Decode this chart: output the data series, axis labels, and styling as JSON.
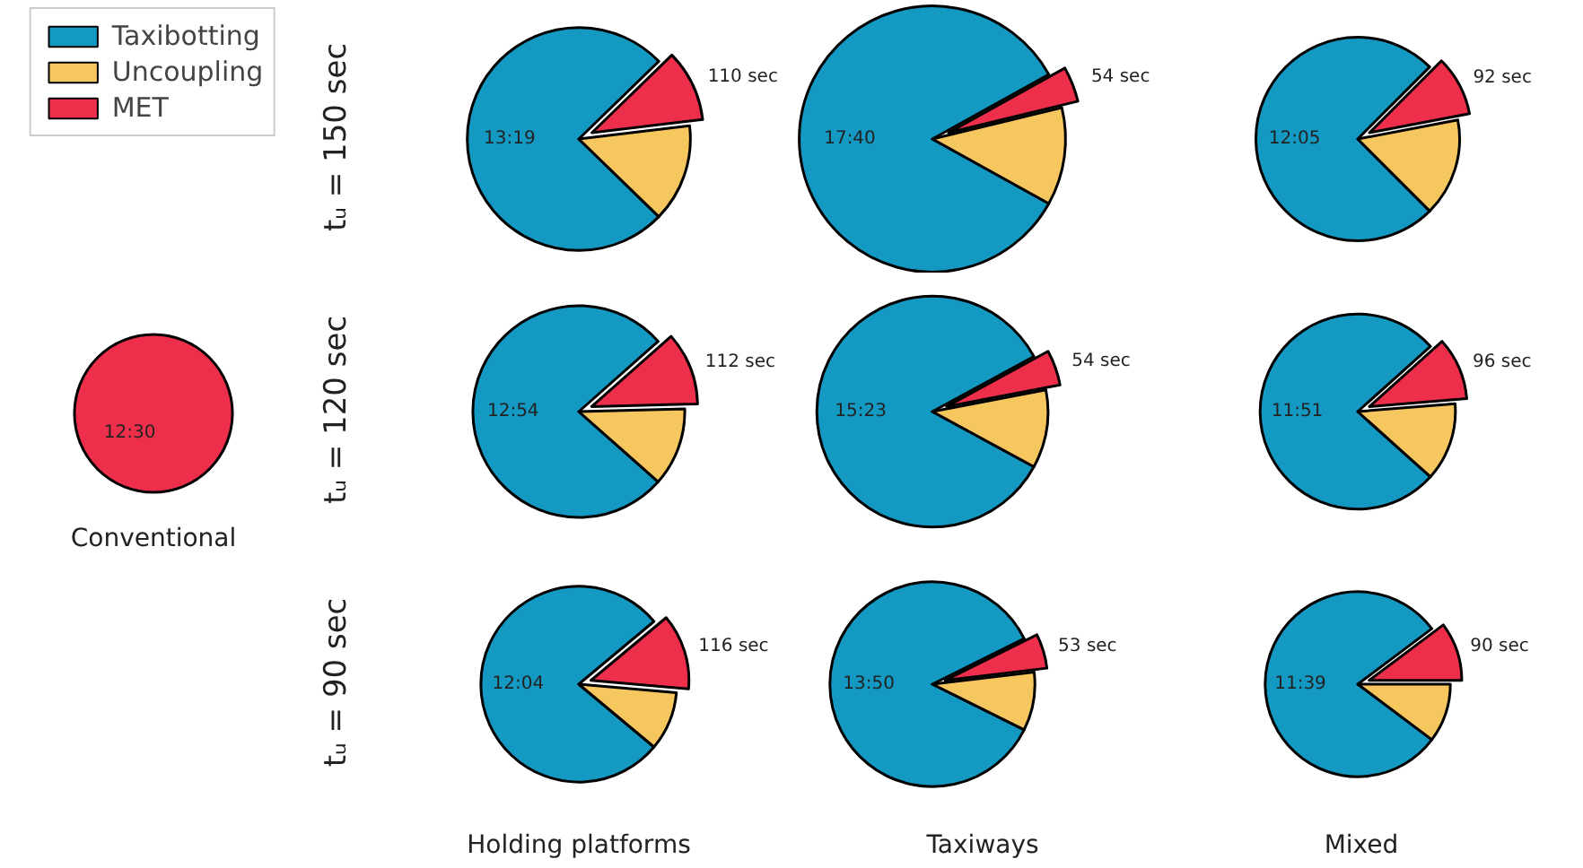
{
  "chart_data": [
    {
      "type": "pie",
      "xlabel": "Conventional",
      "categories": [
        "Taxibotting",
        "Uncoupling",
        "MET"
      ],
      "values": [
        0,
        0,
        750
      ],
      "colors": [
        "#1399c2",
        "#f6c65f",
        "#ee2f4c"
      ],
      "value_labels": [
        null,
        null,
        "12:30"
      ],
      "legend": "top"
    },
    {
      "type": "pie",
      "ylabel": "tᵤ = 150 sec",
      "values": [
        799,
        150,
        110
      ],
      "colors": [
        "#1399c2",
        "#f6c65f",
        "#ee2f4c"
      ],
      "value_labels": [
        "13:19",
        null,
        "110 sec"
      ]
    },
    {
      "type": "pie",
      "values": [
        1060,
        150,
        54
      ],
      "colors": [
        "#1399c2",
        "#f6c65f",
        "#ee2f4c"
      ],
      "value_labels": [
        "17:40",
        null,
        "54 sec"
      ]
    },
    {
      "type": "pie",
      "values": [
        725,
        150,
        92
      ],
      "colors": [
        "#1399c2",
        "#f6c65f",
        "#ee2f4c"
      ],
      "value_labels": [
        "12:05",
        null,
        "92 sec"
      ]
    },
    {
      "type": "pie",
      "ylabel": "tᵤ = 120 sec",
      "values": [
        774,
        120,
        112
      ],
      "colors": [
        "#1399c2",
        "#f6c65f",
        "#ee2f4c"
      ],
      "value_labels": [
        "12:54",
        null,
        "112 sec"
      ]
    },
    {
      "type": "pie",
      "values": [
        923,
        120,
        54
      ],
      "colors": [
        "#1399c2",
        "#f6c65f",
        "#ee2f4c"
      ],
      "value_labels": [
        "15:23",
        null,
        "54 sec"
      ]
    },
    {
      "type": "pie",
      "values": [
        711,
        120,
        96
      ],
      "colors": [
        "#1399c2",
        "#f6c65f",
        "#ee2f4c"
      ],
      "value_labels": [
        "11:51",
        null,
        "96 sec"
      ]
    },
    {
      "type": "pie",
      "ylabel": "tᵤ = 90 sec",
      "xlabel": "Holding platforms",
      "values": [
        724,
        90,
        116
      ],
      "colors": [
        "#1399c2",
        "#f6c65f",
        "#ee2f4c"
      ],
      "value_labels": [
        "12:04",
        null,
        "116 sec"
      ]
    },
    {
      "type": "pie",
      "xlabel": "Taxiways",
      "values": [
        830,
        90,
        53
      ],
      "colors": [
        "#1399c2",
        "#f6c65f",
        "#ee2f4c"
      ],
      "value_labels": [
        "13:50",
        null,
        "53 sec"
      ]
    },
    {
      "type": "pie",
      "xlabel": "Mixed",
      "values": [
        699,
        90,
        90
      ],
      "colors": [
        "#1399c2",
        "#f6c65f",
        "#ee2f4c"
      ],
      "value_labels": [
        "11:39",
        null,
        "90 sec"
      ]
    }
  ]
}
